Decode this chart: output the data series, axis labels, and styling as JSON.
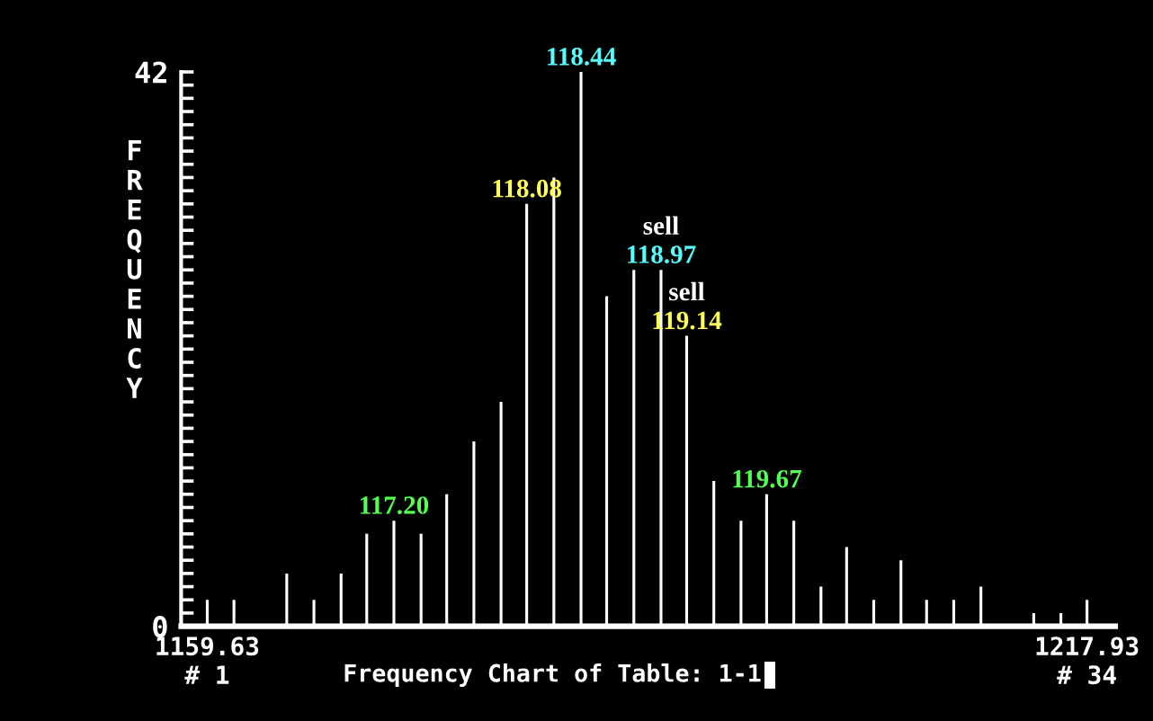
{
  "chart_data": {
    "type": "bar",
    "title": "Frequency Chart of Table: 1-1",
    "ylabel": "FREQUENCY",
    "color": "#ffffff",
    "x": [
      1159.63,
      1161.4,
      1163.2,
      1164.9,
      1166.7,
      1168.5,
      1170.2,
      1172.0,
      1173.8,
      1175.5,
      1177.3,
      1179.1,
      1180.8,
      1182.6,
      1184.4,
      1186.1,
      1187.9,
      1189.7,
      1191.4,
      1193.2,
      1195.0,
      1196.7,
      1198.5,
      1200.3,
      1202.0,
      1203.8,
      1205.6,
      1207.3,
      1209.1,
      1210.9,
      1212.6,
      1214.4,
      1216.2,
      1217.93
    ],
    "values": [
      2,
      2,
      0,
      4,
      2,
      4,
      7,
      8,
      7,
      10,
      14,
      17,
      32,
      34,
      42,
      25,
      27,
      27,
      22,
      11,
      8,
      10,
      8,
      3,
      6,
      2,
      5,
      2,
      2,
      3,
      0,
      1,
      1,
      2
    ],
    "xlim": [
      1157.9,
      1219.8
    ],
    "xticks": [
      1159.63,
      1217.93
    ],
    "ylim": [
      0,
      42
    ],
    "yticks": [
      0,
      {
        "value": 1,
        "label": null
      },
      {
        "value": 2,
        "label": null
      },
      {
        "value": 3,
        "label": null
      },
      {
        "value": 4,
        "label": null
      },
      {
        "value": 5,
        "label": null
      },
      {
        "value": 6,
        "label": null
      },
      {
        "value": 7,
        "label": null
      },
      {
        "value": 8,
        "label": null
      },
      {
        "value": 9,
        "label": null
      },
      {
        "value": 10,
        "label": null
      },
      {
        "value": 11,
        "label": null
      },
      {
        "value": 12,
        "label": null
      },
      {
        "value": 13,
        "label": null
      },
      {
        "value": 14,
        "label": null
      },
      {
        "value": 15,
        "label": null
      },
      {
        "value": 16,
        "label": null
      },
      {
        "value": 17,
        "label": null
      },
      {
        "value": 18,
        "label": null
      },
      {
        "value": 19,
        "label": null
      },
      {
        "value": 20,
        "label": null
      },
      {
        "value": 21,
        "label": null
      },
      {
        "value": 22,
        "label": null
      },
      {
        "value": 23,
        "label": null
      },
      {
        "value": 24,
        "label": null
      },
      {
        "value": 25,
        "label": null
      },
      {
        "value": 26,
        "label": null
      },
      {
        "value": 27,
        "label": null
      },
      {
        "value": 28,
        "label": null
      },
      {
        "value": 29,
        "label": null
      },
      {
        "value": 30,
        "label": null
      },
      {
        "value": 31,
        "label": null
      },
      {
        "value": 32,
        "label": null
      },
      {
        "value": 33,
        "label": null
      },
      {
        "value": 34,
        "label": null
      },
      {
        "value": 35,
        "label": null
      },
      {
        "value": 36,
        "label": null
      },
      {
        "value": 37,
        "label": null
      },
      {
        "value": 38,
        "label": null
      },
      {
        "value": 39,
        "label": null
      },
      {
        "value": 40,
        "label": null
      },
      {
        "value": 41,
        "label": null
      },
      42
    ],
    "annotations": [
      {
        "text": "117.20",
        "x": 1172.0,
        "y": 8
      },
      {
        "text": "118.08",
        "x": 1180.8,
        "y": 32
      },
      {
        "text": "118.44",
        "x": 1184.4,
        "y": 42
      },
      {
        "text": "118.97",
        "x": 1189.7,
        "y": 27
      },
      {
        "text": "sell",
        "x": 1189.7,
        "y": 27
      },
      {
        "text": "119.14",
        "x": 1191.4,
        "y": 22
      },
      {
        "text": "sell",
        "x": 1191.4,
        "y": 22
      },
      {
        "text": "119.67",
        "x": 1196.7,
        "y": 10
      },
      "# 1",
      "# 34"
    ]
  }
}
